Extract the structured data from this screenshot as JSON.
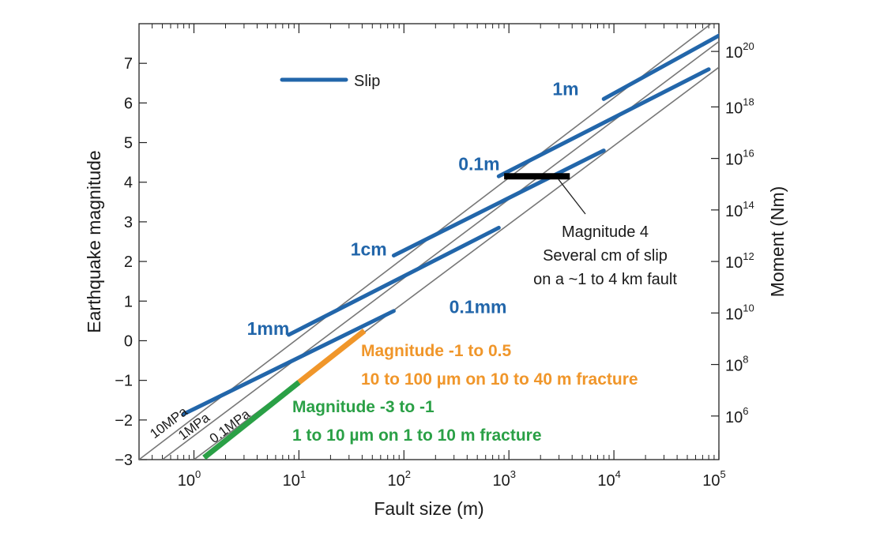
{
  "chart_data": {
    "type": "line",
    "x_scale": "log",
    "xlabel": "Fault size (m)",
    "ylabel": "Earthquake magnitude",
    "y2label": "Moment (Nm)",
    "xlim": [
      0.3,
      100000
    ],
    "ylim": [
      -3,
      8
    ],
    "x_ticks": [
      {
        "value": 1,
        "base": "10",
        "exp": "0"
      },
      {
        "value": 10,
        "base": "10",
        "exp": "1"
      },
      {
        "value": 100,
        "base": "10",
        "exp": "2"
      },
      {
        "value": 1000,
        "base": "10",
        "exp": "3"
      },
      {
        "value": 10000,
        "base": "10",
        "exp": "4"
      },
      {
        "value": 100000,
        "base": "10",
        "exp": "5"
      }
    ],
    "y_ticks": [
      {
        "value": -3,
        "label": "−3"
      },
      {
        "value": -2,
        "label": "−2"
      },
      {
        "value": -1,
        "label": "−1"
      },
      {
        "value": 0,
        "label": "0"
      },
      {
        "value": 1,
        "label": "1"
      },
      {
        "value": 2,
        "label": "2"
      },
      {
        "value": 3,
        "label": "3"
      },
      {
        "value": 4,
        "label": "4"
      },
      {
        "value": 5,
        "label": "5"
      },
      {
        "value": 6,
        "label": "6"
      },
      {
        "value": 7,
        "label": "7"
      }
    ],
    "y2_ticks": [
      {
        "magnitude": -1.9,
        "base": "10",
        "exp": "6"
      },
      {
        "magnitude": -0.6,
        "base": "10",
        "exp": "8"
      },
      {
        "magnitude": 0.7,
        "base": "10",
        "exp": "10"
      },
      {
        "magnitude": 2.0,
        "base": "10",
        "exp": "12"
      },
      {
        "magnitude": 3.3,
        "base": "10",
        "exp": "14"
      },
      {
        "magnitude": 4.6,
        "base": "10",
        "exp": "16"
      },
      {
        "magnitude": 5.9,
        "base": "10",
        "exp": "18"
      },
      {
        "magnitude": 7.3,
        "base": "10",
        "exp": "20"
      }
    ],
    "stress_lines": [
      {
        "label": "10MPa",
        "points": [
          [
            0.3,
            -3.0
          ],
          [
            100000,
            8.15
          ]
        ]
      },
      {
        "label": "1MPa",
        "points": [
          [
            0.5,
            -3.0
          ],
          [
            100000,
            7.55
          ]
        ]
      },
      {
        "label": "0.1MPa",
        "points": [
          [
            1.0,
            -3.0
          ],
          [
            100000,
            6.9
          ]
        ]
      }
    ],
    "series": [
      {
        "name": "Slip",
        "segments": [
          {
            "label": "1mm",
            "points": [
              [
                0.8,
                -1.85
              ],
              [
                80,
                0.75
              ]
            ]
          },
          {
            "label": "1cm",
            "points": [
              [
                8,
                0.15
              ],
              [
                800,
                2.85
              ]
            ]
          },
          {
            "label": "0.1m",
            "points": [
              [
                80,
                2.15
              ],
              [
                8000,
                4.8
              ]
            ]
          },
          {
            "label": "1m",
            "points": [
              [
                800,
                4.15
              ],
              [
                80000,
                6.85
              ]
            ]
          },
          {
            "label": "",
            "points": [
              [
                8000,
                6.1
              ],
              [
                100000,
                7.7
              ]
            ]
          }
        ]
      }
    ],
    "slip_labels": [
      {
        "text": "1mm",
        "x": 3.2,
        "y": 0.15
      },
      {
        "text": "1cm",
        "x": 31,
        "y": 2.15
      },
      {
        "text": "0.1mm",
        "x": 270,
        "y": 0.7
      },
      {
        "text": "0.1m",
        "x": 330,
        "y": 4.3
      },
      {
        "text": "1m",
        "x": 2600,
        "y": 6.2
      }
    ],
    "highlights": [
      {
        "color": "#f0962a",
        "points": [
          [
            10,
            -1.05
          ],
          [
            42,
            0.25
          ]
        ]
      },
      {
        "color": "#2aa046",
        "points": [
          [
            1.25,
            -2.95
          ],
          [
            10,
            -1.05
          ]
        ]
      }
    ],
    "event_marker": {
      "color": "#000000",
      "x_range": [
        900,
        3800
      ],
      "y": 4.15
    },
    "legend": {
      "placement": "top-left",
      "label": "Slip",
      "color": "#2266aa"
    }
  },
  "annotations": {
    "magnitude4": [
      "Magnitude 4",
      "Several cm of slip",
      "on a ~1 to 4 km fault"
    ],
    "orange": [
      "Magnitude -1 to  0.5",
      "10 to 100 µm on 10 to 40 m fracture"
    ],
    "green": [
      "Magnitude -3 to -1",
      "1 to 10 µm on 1 to 10 m fracture"
    ]
  },
  "colors": {
    "slip": "#2266aa",
    "stress": "#777777",
    "orange": "#f0962a",
    "green": "#2aa046",
    "marker": "#000000"
  }
}
